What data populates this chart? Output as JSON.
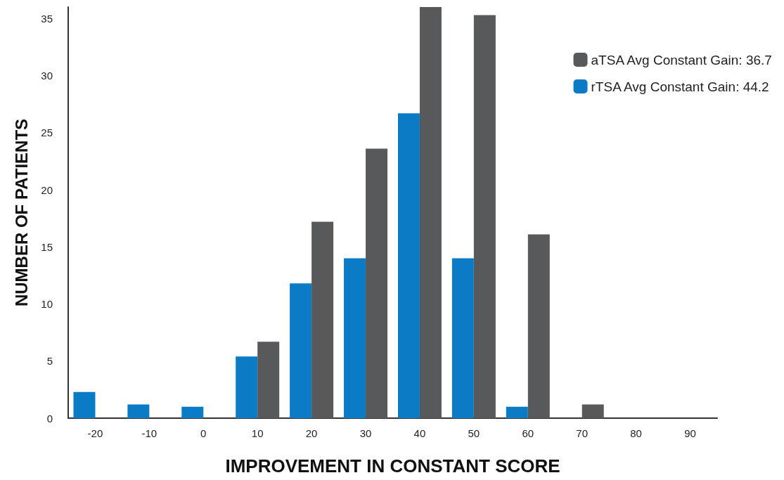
{
  "chart_data": {
    "type": "bar",
    "xlabel": "IMPROVEMENT IN CONSTANT SCORE",
    "ylabel": "NUMBER OF PATIENTS",
    "categories": [
      "-20",
      "-10",
      "0",
      "10",
      "20",
      "30",
      "40",
      "50",
      "60",
      "70",
      "80",
      "90"
    ],
    "series": [
      {
        "name": "rTSA Avg Constant Gain: 44.2",
        "color": "#0a7bc4",
        "values": [
          2.3,
          1.2,
          1.0,
          5.4,
          11.8,
          14.0,
          26.7,
          14.0,
          1.0,
          null,
          null,
          null
        ]
      },
      {
        "name": "aTSA Avg Constant Gain: 36.7",
        "color": "#58595b",
        "values": [
          null,
          null,
          null,
          6.7,
          17.2,
          23.6,
          36.0,
          35.3,
          16.1,
          1.2,
          null,
          null
        ]
      }
    ],
    "ylim": [
      0,
      36
    ],
    "yticks": [
      0,
      5,
      10,
      15,
      20,
      25,
      30,
      35
    ],
    "grid": false,
    "legend": "top right"
  }
}
